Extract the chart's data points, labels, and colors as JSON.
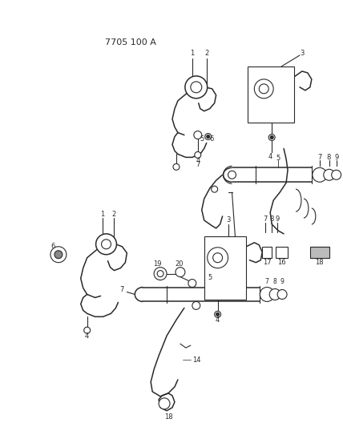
{
  "title": "7705 100 A",
  "bg_color": "#ffffff",
  "line_color": "#2a2a2a",
  "fig_width": 4.28,
  "fig_height": 5.33,
  "dpi": 100
}
